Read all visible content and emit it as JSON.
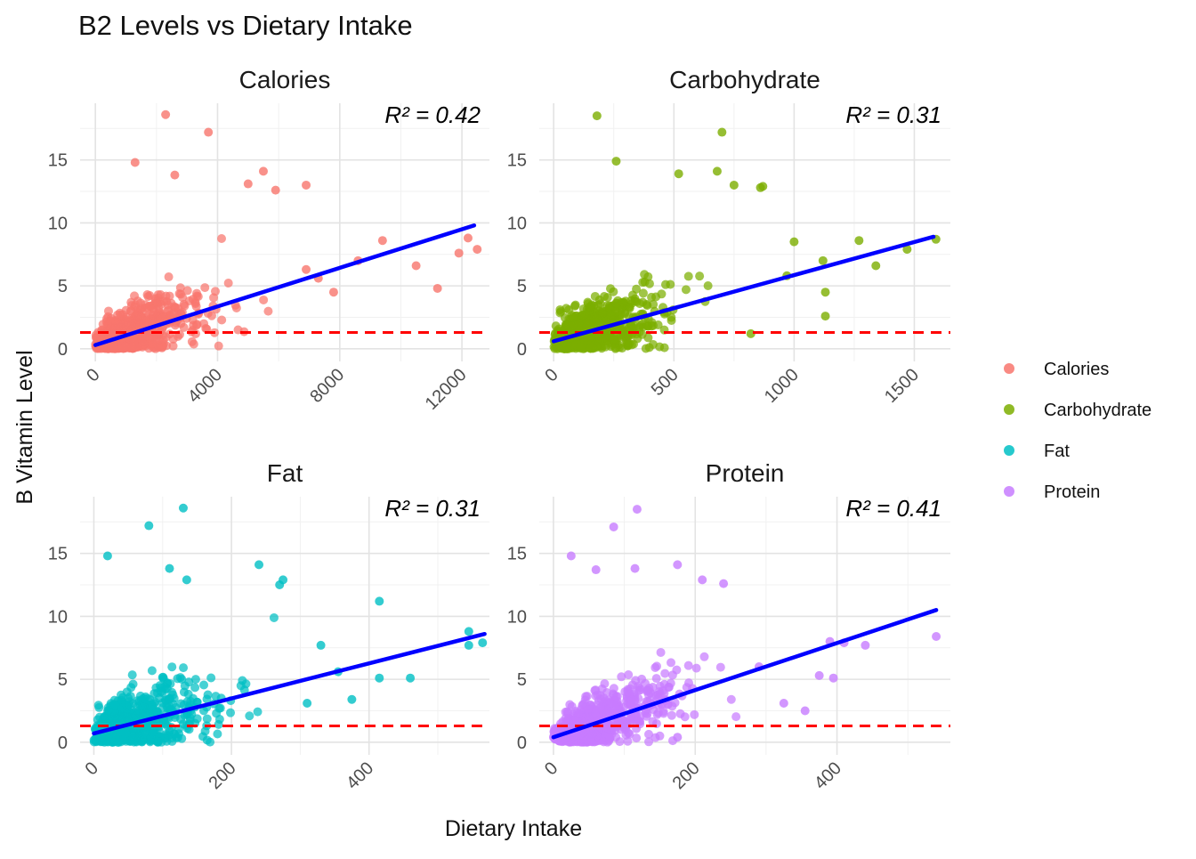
{
  "title": "B2 Levels vs Dietary Intake",
  "xlabel": "Dietary Intake",
  "ylabel": "B Vitamin Level",
  "legend": {
    "placement": "right",
    "items": [
      {
        "label": "Calories",
        "color": "#F8766D"
      },
      {
        "label": "Carbohydrate",
        "color": "#7CAE00"
      },
      {
        "label": "Fat",
        "color": "#00BFC4"
      },
      {
        "label": "Protein",
        "color": "#C77CFF"
      }
    ]
  },
  "colors": {
    "fit_line": "#0000FF",
    "reference_line": "#FF0000"
  },
  "chart_data": [
    {
      "type": "scatter",
      "panel": "Calories",
      "color": "#F8766D",
      "r2_label": "R² = 0.42",
      "xlim": [
        -500,
        12900
      ],
      "ylim": [
        -1,
        19.5
      ],
      "x_ticks": [
        0,
        4000,
        8000,
        12000
      ],
      "x_tick_labels": [
        "0",
        "4000",
        "8000",
        "12000"
      ],
      "y_ticks": [
        0,
        5,
        10,
        15
      ],
      "y_tick_labels": [
        "0",
        "5",
        "10",
        "15"
      ],
      "fit_line": [
        [
          0,
          0.3
        ],
        [
          12400,
          9.8
        ]
      ],
      "reference_y": 1.3,
      "cloud": {
        "x_max": 6000,
        "x_spread": 1600,
        "y_intercept": 0.3,
        "slope": 0.00077,
        "noise": 1.4,
        "count": 650
      },
      "outliers": [
        [
          2300,
          18.6
        ],
        [
          3700,
          17.2
        ],
        [
          1300,
          14.8
        ],
        [
          5500,
          14.1
        ],
        [
          2600,
          13.8
        ],
        [
          5000,
          13.1
        ],
        [
          5900,
          12.6
        ],
        [
          6900,
          13.0
        ],
        [
          9400,
          8.6
        ],
        [
          10500,
          6.6
        ],
        [
          11200,
          4.8
        ],
        [
          11900,
          7.6
        ],
        [
          12200,
          8.8
        ],
        [
          12500,
          7.9
        ],
        [
          8600,
          7.0
        ],
        [
          7800,
          4.5
        ],
        [
          7300,
          5.6
        ],
        [
          6900,
          6.3
        ]
      ]
    },
    {
      "type": "scatter",
      "panel": "Carbohydrate",
      "color": "#7CAE00",
      "r2_label": "R² = 0.31",
      "xlim": [
        -60,
        1650
      ],
      "ylim": [
        -1,
        19.5
      ],
      "x_ticks": [
        0,
        500,
        1000,
        1500
      ],
      "x_tick_labels": [
        "0",
        "500",
        "1000",
        "1500"
      ],
      "y_ticks": [
        0,
        5,
        10,
        15
      ],
      "y_tick_labels": [
        "0",
        "5",
        "10",
        "15"
      ],
      "fit_line": [
        [
          0,
          0.6
        ],
        [
          1580,
          8.9
        ]
      ],
      "reference_y": 1.3,
      "cloud": {
        "x_max": 750,
        "x_spread": 200,
        "y_intercept": 0.6,
        "slope": 0.0054,
        "noise": 1.5,
        "count": 650
      },
      "outliers": [
        [
          180,
          18.5
        ],
        [
          700,
          17.2
        ],
        [
          260,
          14.9
        ],
        [
          520,
          13.9
        ],
        [
          680,
          14.1
        ],
        [
          750,
          13.0
        ],
        [
          860,
          12.8
        ],
        [
          870,
          12.9
        ],
        [
          1000,
          8.5
        ],
        [
          1120,
          7.0
        ],
        [
          1270,
          8.6
        ],
        [
          1340,
          6.6
        ],
        [
          1470,
          7.9
        ],
        [
          1590,
          8.7
        ],
        [
          1130,
          4.5
        ],
        [
          1130,
          2.6
        ],
        [
          970,
          5.8
        ],
        [
          820,
          1.2
        ]
      ]
    },
    {
      "type": "scatter",
      "panel": "Fat",
      "color": "#00BFC4",
      "r2_label": "R² = 0.31",
      "xlim": [
        -20,
        575
      ],
      "ylim": [
        -1,
        19.5
      ],
      "x_ticks": [
        0,
        200,
        400
      ],
      "x_tick_labels": [
        "0",
        "200",
        "400"
      ],
      "y_ticks": [
        0,
        5,
        10,
        15
      ],
      "y_tick_labels": [
        "0",
        "5",
        "10",
        "15"
      ],
      "fit_line": [
        [
          0,
          0.7
        ],
        [
          568,
          8.6
        ]
      ],
      "reference_y": 1.3,
      "cloud": {
        "x_max": 280,
        "x_spread": 75,
        "y_intercept": 0.7,
        "slope": 0.0139,
        "noise": 1.6,
        "count": 650
      },
      "outliers": [
        [
          130,
          18.6
        ],
        [
          80,
          17.2
        ],
        [
          20,
          14.8
        ],
        [
          240,
          14.1
        ],
        [
          110,
          13.8
        ],
        [
          135,
          12.9
        ],
        [
          270,
          12.5
        ],
        [
          275,
          12.9
        ],
        [
          415,
          11.2
        ],
        [
          545,
          8.8
        ],
        [
          545,
          7.7
        ],
        [
          565,
          7.9
        ],
        [
          460,
          5.1
        ],
        [
          415,
          5.1
        ],
        [
          375,
          3.4
        ],
        [
          355,
          5.6
        ],
        [
          330,
          7.7
        ],
        [
          310,
          3.1
        ]
      ]
    },
    {
      "type": "scatter",
      "panel": "Protein",
      "color": "#C77CFF",
      "r2_label": "R² = 0.41",
      "xlim": [
        -20,
        560
      ],
      "ylim": [
        -1,
        19.5
      ],
      "x_ticks": [
        0,
        200,
        400
      ],
      "x_tick_labels": [
        "0",
        "200",
        "400"
      ],
      "y_ticks": [
        0,
        5,
        10,
        15
      ],
      "y_tick_labels": [
        "0",
        "5",
        "10",
        "15"
      ],
      "fit_line": [
        [
          0,
          0.4
        ],
        [
          540,
          10.5
        ]
      ],
      "reference_y": 1.3,
      "cloud": {
        "x_max": 270,
        "x_spread": 80,
        "y_intercept": 0.4,
        "slope": 0.0187,
        "noise": 1.5,
        "count": 650
      },
      "outliers": [
        [
          118,
          18.5
        ],
        [
          85,
          17.1
        ],
        [
          25,
          14.8
        ],
        [
          175,
          14.1
        ],
        [
          60,
          13.7
        ],
        [
          115,
          13.8
        ],
        [
          210,
          12.9
        ],
        [
          240,
          12.6
        ],
        [
          390,
          8.0
        ],
        [
          410,
          7.9
        ],
        [
          440,
          7.7
        ],
        [
          540,
          8.4
        ],
        [
          375,
          5.3
        ],
        [
          395,
          5.1
        ],
        [
          355,
          2.5
        ],
        [
          325,
          3.1
        ],
        [
          290,
          6.0
        ],
        [
          175,
          0.4
        ]
      ]
    }
  ]
}
